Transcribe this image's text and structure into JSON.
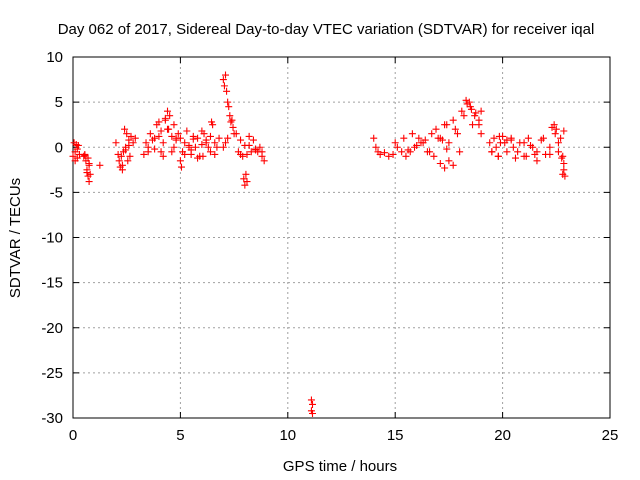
{
  "colors": {
    "series": "#ff0000",
    "grid": "#a0a0a0",
    "frame": "#000000"
  },
  "chart_data": {
    "type": "scatter",
    "marker": "plus",
    "title": "Day 062 of 2017, Sidereal Day-to-day VTEC variation (SDTVAR) for receiver iqal",
    "xlabel": "GPS time / hours",
    "ylabel": "SDTVAR / TECUs",
    "xlim": [
      0,
      25
    ],
    "ylim": [
      -30,
      10
    ],
    "xticks": [
      0,
      5,
      10,
      15,
      20,
      25
    ],
    "xtick_labels": [
      "0",
      "5",
      "10",
      "15",
      "20",
      "25"
    ],
    "yticks": [
      10,
      5,
      0,
      -5,
      -10,
      -15,
      -20,
      -25,
      -30
    ],
    "ytick_labels": [
      "10",
      "5",
      "0",
      "-5",
      "-10",
      "-15",
      "-20",
      "-25",
      "-30"
    ],
    "grid": true,
    "series": [
      {
        "name": "SDTVAR",
        "x": [
          0.0,
          0.05,
          0.1,
          0.15,
          0.2,
          0.25,
          0.3,
          0.1,
          0.2,
          0.5,
          0.55,
          0.6,
          0.65,
          0.7,
          0.75,
          0.55,
          0.65,
          0.7,
          0.75,
          0.8,
          0.75,
          1.25,
          2.0,
          2.1,
          2.15,
          2.2,
          2.25,
          2.3,
          2.35,
          2.4,
          2.45,
          2.5,
          2.55,
          2.6,
          2.65,
          2.7,
          2.8,
          2.9,
          2.3,
          2.45,
          2.6,
          3.3,
          3.4,
          3.5,
          3.6,
          3.7,
          3.8,
          3.9,
          4.0,
          4.1,
          4.2,
          4.3,
          4.4,
          4.5,
          4.6,
          4.7,
          4.8,
          4.9,
          5.0,
          5.1,
          5.2,
          5.3,
          5.4,
          5.5,
          5.6,
          5.7,
          5.8,
          5.9,
          6.0,
          6.1,
          6.2,
          6.3,
          6.4,
          6.5,
          6.6,
          6.7,
          6.8,
          4.0,
          4.2,
          4.4,
          4.6,
          4.8,
          5.0,
          5.2,
          5.4,
          5.6,
          5.8,
          6.0,
          6.2,
          6.4,
          6.6,
          3.5,
          3.8,
          4.1,
          4.3,
          4.45,
          4.7,
          5.05,
          5.5,
          6.05,
          6.45,
          7.0,
          7.05,
          7.1,
          7.15,
          7.2,
          7.25,
          7.3,
          7.35,
          7.4,
          7.45,
          7.5,
          7.0,
          7.1,
          7.2,
          7.6,
          7.7,
          7.8,
          7.9,
          8.0,
          8.1,
          8.2,
          8.3,
          8.4,
          8.5,
          8.6,
          8.7,
          8.8,
          8.9,
          7.95,
          8.0,
          8.05,
          8.1,
          7.8,
          8.2,
          8.5,
          8.8,
          11.1,
          11.15,
          11.1,
          11.15,
          14.0,
          14.1,
          14.2,
          14.3,
          14.5,
          14.7,
          14.9,
          15.1,
          15.3,
          15.5,
          15.7,
          15.9,
          16.1,
          16.3,
          16.5,
          16.7,
          16.9,
          17.1,
          17.3,
          17.5,
          17.7,
          17.9,
          18.1,
          18.3,
          18.5,
          18.7,
          18.9,
          19.0,
          15.0,
          15.4,
          15.8,
          16.2,
          16.6,
          17.0,
          17.4,
          17.8,
          18.2,
          18.6,
          16.8,
          17.1,
          17.3,
          17.5,
          17.7,
          17.4,
          17.2,
          18.0,
          18.35,
          18.45,
          18.55,
          18.75,
          18.9,
          19.0,
          15.6,
          16.0,
          16.4,
          19.4,
          19.5,
          19.6,
          19.7,
          19.8,
          19.9,
          20.0,
          20.2,
          20.4,
          20.6,
          20.8,
          21.0,
          21.2,
          21.4,
          21.6,
          21.8,
          22.0,
          22.2,
          22.4,
          22.5,
          22.6,
          22.7,
          22.8,
          22.85,
          22.9,
          19.5,
          19.8,
          20.1,
          20.4,
          20.7,
          21.0,
          21.3,
          21.6,
          21.9,
          22.2,
          22.3,
          22.45,
          22.6,
          22.75,
          22.85,
          19.85,
          20.2,
          20.5,
          21.5,
          21.1,
          22.8,
          22.85
        ],
        "y": [
          -1.0,
          0.5,
          -0.5,
          0.3,
          -1.2,
          0.2,
          -0.8,
          -1.5,
          -0.2,
          -1.0,
          -0.8,
          -1.5,
          -2.8,
          -3.2,
          -3.8,
          -0.9,
          -2.5,
          -1.2,
          -2.0,
          -3.0,
          -1.8,
          -2.0,
          0.5,
          -0.8,
          -1.5,
          -2.2,
          -1.0,
          -2.0,
          -0.5,
          2.0,
          0.0,
          1.5,
          -1.5,
          0.8,
          -1.0,
          1.2,
          0.5,
          1.0,
          -2.5,
          -0.3,
          0.2,
          -0.8,
          0.5,
          -0.5,
          1.5,
          0.8,
          -0.2,
          2.5,
          1.2,
          1.8,
          0.5,
          3.0,
          2.0,
          3.5,
          1.2,
          2.5,
          0.8,
          1.5,
          1.0,
          -0.5,
          0.5,
          1.8,
          0.2,
          -0.8,
          0.9,
          0.0,
          1.0,
          -1.0,
          0.3,
          1.5,
          0.8,
          0.0,
          1.2,
          2.5,
          0.5,
          0.0,
          1.0,
          2.8,
          -1.0,
          4.0,
          -0.5,
          1.0,
          -1.5,
          -0.8,
          0.0,
          1.2,
          -1.2,
          1.8,
          0.5,
          -0.5,
          -0.8,
          0.0,
          1.0,
          -0.5,
          3.2,
          2.0,
          0.0,
          -2.2,
          -0.3,
          -1.0,
          2.8,
          7.5,
          6.8,
          8.0,
          6.2,
          5.0,
          4.5,
          3.5,
          2.8,
          3.0,
          2.2,
          1.5,
          0.0,
          0.5,
          1.0,
          1.5,
          -0.5,
          0.8,
          -1.0,
          0.2,
          -0.8,
          1.2,
          -0.5,
          0.8,
          -0.3,
          -0.5,
          0.0,
          -1.0,
          -1.5,
          -3.5,
          -4.2,
          -3.0,
          -3.8,
          -0.8,
          0.2,
          -0.2,
          -0.5,
          -28.0,
          -28.5,
          -29.2,
          -29.5,
          1.0,
          0.0,
          -0.5,
          -0.8,
          -0.6,
          -1.0,
          -0.8,
          0.0,
          -0.5,
          -1.0,
          -0.5,
          0.0,
          1.0,
          0.5,
          -0.5,
          1.5,
          2.0,
          1.0,
          2.5,
          0.5,
          3.0,
          1.5,
          4.0,
          5.2,
          4.5,
          3.5,
          3.0,
          4.0,
          0.5,
          1.0,
          1.5,
          0.5,
          -0.5,
          1.0,
          2.5,
          2.0,
          3.5,
          2.5,
          -1.0,
          -1.8,
          -2.3,
          -1.5,
          -2.0,
          -0.2,
          0.8,
          -0.5,
          4.8,
          5.0,
          4.2,
          3.8,
          2.5,
          1.5,
          -0.3,
          0.2,
          0.8,
          0.5,
          -0.5,
          1.0,
          0.0,
          -1.0,
          0.5,
          1.2,
          -0.5,
          0.8,
          -1.2,
          0.5,
          -1.0,
          1.0,
          0.0,
          -0.5,
          0.8,
          -0.8,
          0.0,
          2.5,
          2.0,
          -0.5,
          1.0,
          -1.0,
          -2.5,
          -3.2,
          -0.5,
          -1.0,
          0.5,
          1.0,
          -0.5,
          0.5,
          0.2,
          -1.5,
          1.0,
          -0.8,
          2.2,
          1.5,
          0.5,
          -1.2,
          -1.8,
          1.2,
          0.8,
          0.0,
          -0.8,
          -1.0,
          -3.0,
          1.8
        ]
      }
    ]
  }
}
